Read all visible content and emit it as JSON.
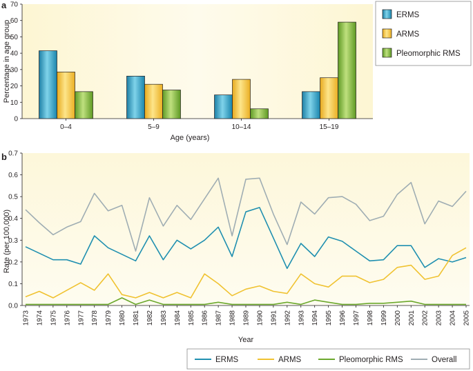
{
  "chart_data": [
    {
      "panel": "a",
      "type": "bar",
      "xlabel": "Age (years)",
      "ylabel": "Percentage in age group",
      "ylim": [
        0,
        70
      ],
      "yticks": [
        0,
        10,
        20,
        30,
        40,
        50,
        60,
        70
      ],
      "categories": [
        "0–4",
        "5–9",
        "10–14",
        "15–19"
      ],
      "series": [
        {
          "name": "ERMS",
          "color": "#2a9fc0",
          "values": [
            41.5,
            26,
            14.5,
            16.5
          ]
        },
        {
          "name": "ARMS",
          "color": "#f5c242",
          "values": [
            28.5,
            21,
            24,
            25
          ]
        },
        {
          "name": "Pleomorphic RMS",
          "color": "#7cb335",
          "values": [
            16.5,
            17.5,
            6,
            59
          ]
        }
      ],
      "legend_position": "top-right",
      "grid": false
    },
    {
      "panel": "b",
      "type": "line",
      "xlabel": "Year",
      "ylabel": "Rate (per 100,000)",
      "ylim": [
        0,
        0.7
      ],
      "yticks": [
        "0.0",
        "0.1",
        "0.2",
        "0.3",
        "0.4",
        "0.5",
        "0.6",
        "0.7"
      ],
      "x": [
        "1973",
        "1974",
        "1975",
        "1976",
        "1977",
        "1978",
        "1979",
        "1980",
        "1981",
        "1982",
        "1983",
        "1984",
        "1985",
        "1986",
        "1987",
        "1988",
        "1989",
        "1990",
        "1991",
        "1992",
        "1993",
        "1994",
        "1995",
        "1996",
        "1997",
        "1998",
        "1999",
        "2000",
        "2001",
        "2002",
        "2003",
        "2004",
        "2005"
      ],
      "series": [
        {
          "name": "ERMS",
          "color": "#1f8fb0",
          "values": [
            0.27,
            0.24,
            0.21,
            0.21,
            0.19,
            0.32,
            0.265,
            0.235,
            0.205,
            0.32,
            0.21,
            0.3,
            0.26,
            0.3,
            0.36,
            0.225,
            0.43,
            0.45,
            0.31,
            0.17,
            0.285,
            0.225,
            0.315,
            0.295,
            0.25,
            0.205,
            0.21,
            0.275,
            0.275,
            0.175,
            0.215,
            0.2,
            0.22
          ]
        },
        {
          "name": "ARMS",
          "color": "#f0c230",
          "values": [
            0.04,
            0.065,
            0.035,
            0.07,
            0.105,
            0.07,
            0.145,
            0.05,
            0.035,
            0.06,
            0.035,
            0.06,
            0.035,
            0.145,
            0.1,
            0.045,
            0.075,
            0.09,
            0.065,
            0.055,
            0.145,
            0.1,
            0.085,
            0.135,
            0.135,
            0.105,
            0.12,
            0.175,
            0.185,
            0.12,
            0.135,
            0.23,
            0.265
          ]
        },
        {
          "name": "Pleomorphic RMS",
          "color": "#6ba82c",
          "values": [
            0.005,
            0.005,
            0.005,
            0.005,
            0.005,
            0.005,
            0.005,
            0.035,
            0.005,
            0.025,
            0.005,
            0.005,
            0.005,
            0.005,
            0.015,
            0.005,
            0.005,
            0.005,
            0.005,
            0.015,
            0.005,
            0.025,
            0.015,
            0.005,
            0.005,
            0.01,
            0.01,
            0.015,
            0.02,
            0.005,
            0.005,
            0.005,
            0.005
          ]
        },
        {
          "name": "Overall",
          "color": "#9fadb3",
          "values": [
            0.44,
            0.38,
            0.325,
            0.36,
            0.385,
            0.515,
            0.435,
            0.46,
            0.25,
            0.495,
            0.365,
            0.46,
            0.395,
            0.49,
            0.585,
            0.32,
            0.58,
            0.585,
            0.42,
            0.28,
            0.475,
            0.42,
            0.495,
            0.5,
            0.465,
            0.39,
            0.41,
            0.51,
            0.565,
            0.375,
            0.48,
            0.455,
            0.525
          ]
        }
      ],
      "legend_position": "bottom",
      "grid": false
    }
  ]
}
